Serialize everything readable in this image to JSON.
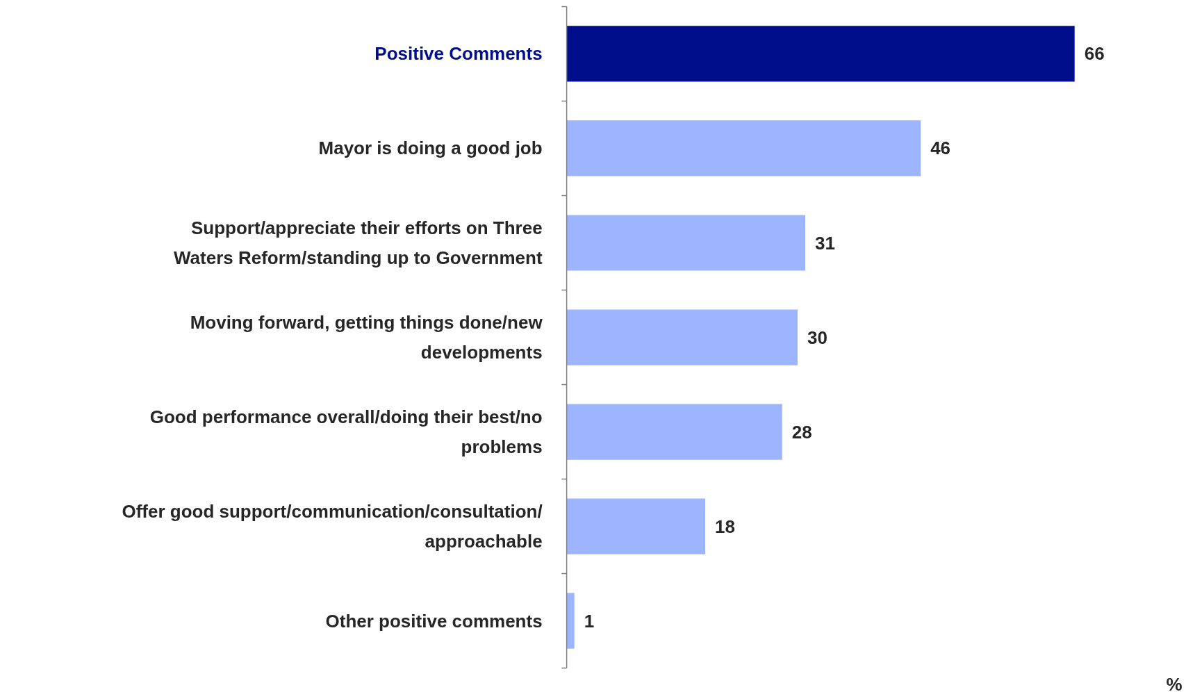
{
  "chart_data": {
    "type": "bar",
    "orientation": "horizontal",
    "annotations": [
      "%"
    ],
    "categories": [
      "Positive Comments",
      "Mayor is doing a good job",
      "Support/appreciate their efforts on Three Waters Reform/standing up to Government",
      "Moving forward, getting things done/new developments",
      "Good performance overall/doing their best/no problems",
      "Offer good support/communication/consultation/approachable",
      "Other positive comments"
    ],
    "values": [
      66,
      46,
      31,
      30,
      28,
      18,
      1
    ],
    "colors": [
      "#000e8c",
      "#9db5ff",
      "#9db5ff",
      "#9db5ff",
      "#9db5ff",
      "#9db5ff",
      "#9db5ff"
    ],
    "data_labels": true
  }
}
